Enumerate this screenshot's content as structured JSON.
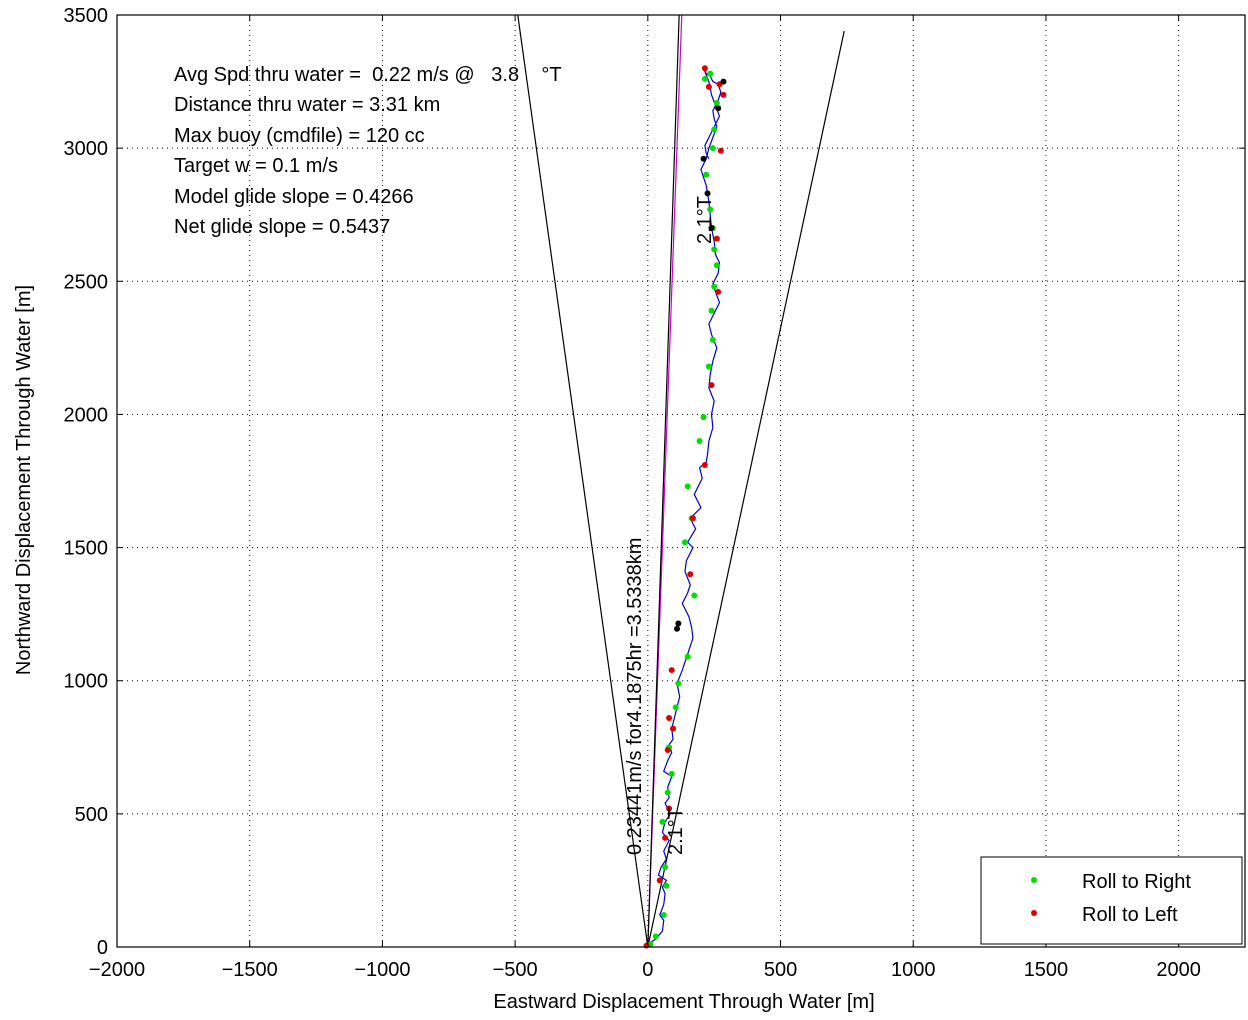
{
  "chart_data": {
    "type": "line",
    "xlabel": "Eastward Displacement Through Water [m]",
    "ylabel": "Northward Displacement Through Water [m]",
    "xlim": [
      -2000,
      2250
    ],
    "ylim": [
      0,
      3500
    ],
    "x_ticks": [
      -2000,
      -1500,
      -1000,
      -500,
      0,
      500,
      1000,
      1500,
      2000
    ],
    "y_ticks": [
      0,
      500,
      1000,
      1500,
      2000,
      2500,
      3000,
      3500
    ],
    "x_tick_labels": [
      "−2000",
      "−1500",
      "−1000",
      "−500",
      "0",
      "500",
      "1000",
      "1500",
      "2000"
    ],
    "y_tick_labels": [
      "0",
      "500",
      "1000",
      "1500",
      "2000",
      "2500",
      "3000",
      "3500"
    ],
    "grid": true,
    "legend_position": "bottom-right",
    "colors": {
      "track": "#0000cc",
      "roll_right": "#00e000",
      "roll_left": "#dd0000",
      "magenta": "#cc00cc",
      "lines": "#000000",
      "black_points": "#000000"
    },
    "annotations": [
      "Avg Spd thru water =  0.22 m/s @   3.8    °T",
      "Distance thru water =  3.31 km",
      "Max buoy (cmdfile) = 120 cc",
      "Target w = 0.1 m/s",
      "Model glide slope = 0.4266",
      "Net glide slope = 0.5437"
    ],
    "rotated_labels": [
      "0.23441m/s for4.1875hr =3.5338km",
      "2.1°T",
      "2.1°T"
    ],
    "lines": [
      {
        "name": "",
        "x": [
          0,
          -490
        ],
        "y": [
          0,
          3500
        ]
      },
      {
        "name": "",
        "x": [
          0,
          740
        ],
        "y": [
          0,
          3440
        ]
      },
      {
        "name": "",
        "x": [
          0,
          128
        ],
        "y": [
          0,
          3500
        ]
      },
      {
        "name": "",
        "x": [
          0,
          118
        ],
        "y": [
          0,
          3500
        ]
      }
    ],
    "series": [
      {
        "name": "track",
        "x": [
          0,
          15,
          30,
          55,
          60,
          45,
          60,
          65,
          55,
          70,
          40,
          50,
          70,
          60,
          80,
          55,
          65,
          85,
          65,
          80,
          75,
          90,
          60,
          75,
          90,
          80,
          95,
          90,
          100,
          110,
          120,
          110,
          130,
          150,
          170,
          165,
          155,
          130,
          150,
          160,
          140,
          145,
          170,
          150,
          180,
          160,
          200,
          175,
          190,
          205,
          195,
          220,
          225,
          230,
          245,
          240,
          250,
          230,
          235,
          245,
          260,
          240,
          230,
          250,
          270,
          255,
          245,
          265,
          270,
          255,
          250,
          240,
          235,
          230,
          220,
          200,
          220,
          230,
          245,
          260,
          250,
          245,
          265,
          275,
          265,
          245,
          235,
          220,
          210,
          230,
          240,
          255,
          270,
          250,
          230,
          215,
          220,
          230
        ],
        "y": [
          0,
          20,
          30,
          60,
          100,
          120,
          160,
          200,
          225,
          250,
          270,
          300,
          330,
          360,
          400,
          430,
          470,
          500,
          540,
          560,
          600,
          640,
          660,
          700,
          730,
          760,
          780,
          820,
          860,
          900,
          940,
          990,
          1040,
          1100,
          1160,
          1200,
          1240,
          1290,
          1330,
          1360,
          1410,
          1450,
          1500,
          1520,
          1570,
          1610,
          1650,
          1700,
          1730,
          1760,
          1800,
          1820,
          1850,
          1900,
          1950,
          2000,
          2050,
          2100,
          2150,
          2200,
          2250,
          2300,
          2340,
          2380,
          2420,
          2460,
          2490,
          2530,
          2570,
          2600,
          2650,
          2700,
          2750,
          2800,
          2860,
          2920,
          2960,
          3000,
          3040,
          3080,
          3110,
          3140,
          3180,
          3210,
          3240,
          3250,
          3270,
          3280,
          3300,
          3250,
          3200,
          3160,
          3120,
          3080,
          3040,
          3010,
          2980,
          2960
        ]
      }
    ],
    "roll_right_points": {
      "name": "Roll to Right",
      "x": [
        10,
        30,
        60,
        70,
        65,
        55,
        75,
        90,
        80,
        95,
        105,
        115,
        150,
        175,
        140,
        165,
        150,
        195,
        210,
        230,
        245,
        240,
        250,
        260,
        250,
        245,
        235,
        220,
        245,
        250,
        260,
        235,
        215
      ],
      "y": [
        10,
        40,
        120,
        230,
        300,
        470,
        580,
        650,
        750,
        820,
        900,
        990,
        1090,
        1320,
        1520,
        1610,
        1730,
        1900,
        1990,
        2180,
        2280,
        2390,
        2480,
        2560,
        2620,
        2700,
        2770,
        2900,
        3000,
        3070,
        3170,
        3280,
        3260
      ]
    },
    "roll_left_points": {
      "name": "Roll to Left",
      "x": [
        -5,
        45,
        65,
        80,
        75,
        95,
        80,
        90,
        160,
        170,
        215,
        240,
        265,
        260,
        275,
        285,
        270,
        215,
        230
      ],
      "y": [
        5,
        250,
        410,
        520,
        740,
        820,
        860,
        1040,
        1400,
        1610,
        1810,
        2110,
        2460,
        2660,
        2990,
        3200,
        3240,
        3300,
        3230
      ]
    },
    "black_points": {
      "x": [
        110,
        115,
        210,
        225,
        240,
        265,
        285
      ],
      "y": [
        1195,
        1215,
        2960,
        2830,
        2700,
        3150,
        3250
      ]
    },
    "legend": {
      "entries": [
        "Roll to Right",
        "Roll to Left"
      ]
    }
  }
}
